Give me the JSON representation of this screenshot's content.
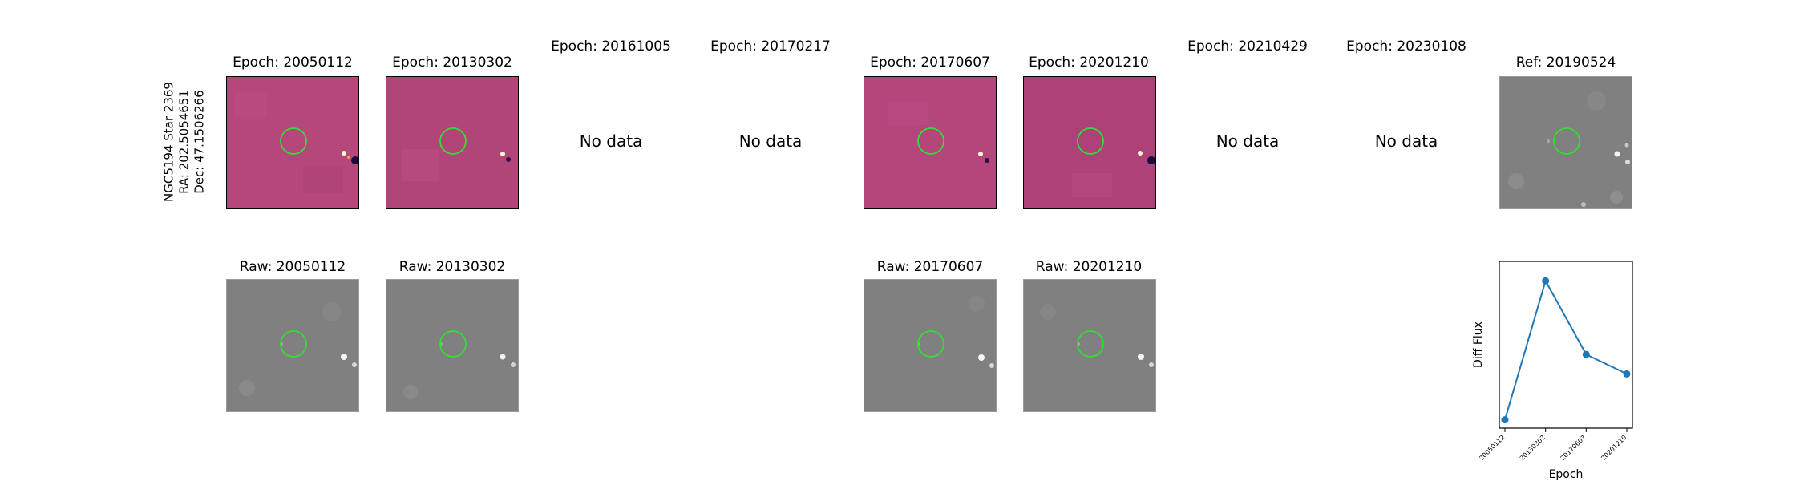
{
  "star_label": {
    "name": "NGC5194 Star 2369",
    "ra": "RA: 202.5054651",
    "dec": "Dec: 47.1506266"
  },
  "top_row": [
    {
      "title": "Epoch: 20050112",
      "has_data": true
    },
    {
      "title": "Epoch: 20130302",
      "has_data": true
    },
    {
      "title": "Epoch: 20161005",
      "has_data": false,
      "nodata": "No data"
    },
    {
      "title": "Epoch: 20170217",
      "has_data": false,
      "nodata": "No data"
    },
    {
      "title": "Epoch: 20170607",
      "has_data": true
    },
    {
      "title": "Epoch: 20201210",
      "has_data": true
    },
    {
      "title": "Epoch: 20210429",
      "has_data": false,
      "nodata": "No data"
    },
    {
      "title": "Epoch: 20230108",
      "has_data": false,
      "nodata": "No data"
    },
    {
      "title": "Ref: 20190524",
      "has_data": true
    }
  ],
  "bottom_row": [
    {
      "title": "Raw: 20050112"
    },
    {
      "title": "Raw: 20130302"
    },
    {
      "title": "Raw: 20170607"
    },
    {
      "title": "Raw: 20201210"
    }
  ],
  "colors": {
    "diff_bg": "#b6477a",
    "raw_bg": "#808080",
    "aperture": "#33dd33",
    "series": "#1f77b4"
  },
  "chart_data": {
    "type": "line",
    "x": [
      "20050112",
      "20130302",
      "20170607",
      "20201210"
    ],
    "series": [
      {
        "values": [
          0.0,
          1.0,
          0.47,
          0.33
        ]
      }
    ],
    "xlabel": "Epoch",
    "ylabel": "Diff Flux",
    "ylim": [
      -0.06,
      1.14
    ],
    "grid": false
  }
}
